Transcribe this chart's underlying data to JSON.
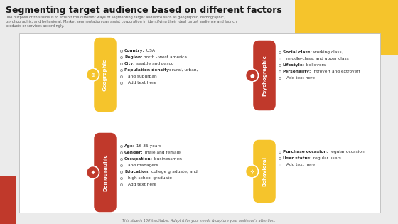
{
  "title": "Segmenting target audience based on different factors",
  "subtitle_lines": [
    "The purpose of this slide is to exhibit the different ways of segmenting target audience such as geographic, demographic,",
    "psychographic, and behavioral. Market segmentation can assist corporation in identifying their ideal target audience and launch",
    "products or services accordingly."
  ],
  "footer": "This slide is 100% editable. Adapt it for your needs & capture your audience's attention.",
  "bg_color": "#ebebeb",
  "yellow": "#F5C42C",
  "red": "#C0392B",
  "white": "#ffffff",
  "boxes": [
    {
      "label": "Geographic",
      "pill_color": "#F5C42C",
      "col": 0,
      "row": 0,
      "bullets": [
        [
          "Country:",
          " USA"
        ],
        [
          "Region:",
          " north - west america"
        ],
        [
          "City:",
          " seattle and pasco"
        ],
        [
          "Population density:",
          " rural, urban,"
        ],
        [
          "",
          "and suburban"
        ],
        [
          "",
          "Add text here"
        ]
      ]
    },
    {
      "label": "Psychographic",
      "pill_color": "#C0392B",
      "col": 1,
      "row": 0,
      "bullets": [
        [
          "Social class:",
          " working class,"
        ],
        [
          "",
          "middle-class, and upper class"
        ],
        [
          "Lifestyle:",
          " believers"
        ],
        [
          "Personality:",
          " introvert and extrovert"
        ],
        [
          "",
          "Add text here"
        ]
      ]
    },
    {
      "label": "Demographic",
      "pill_color": "#C0392B",
      "col": 0,
      "row": 1,
      "bullets": [
        [
          "Age:",
          " 16-35 years"
        ],
        [
          "Gender:",
          " male and female"
        ],
        [
          "Occupation:",
          " businessmen"
        ],
        [
          "",
          "and managers"
        ],
        [
          "Education:",
          " college graduate, and"
        ],
        [
          "",
          "high school graduate"
        ],
        [
          "",
          "Add text here"
        ]
      ]
    },
    {
      "label": "Behavioral",
      "pill_color": "#F5C42C",
      "col": 1,
      "row": 1,
      "bullets": [
        [
          "Purchase occasion:",
          " regular occasion"
        ],
        [
          "User status:",
          " regular users"
        ],
        [
          "",
          "Add text here"
        ]
      ]
    }
  ]
}
